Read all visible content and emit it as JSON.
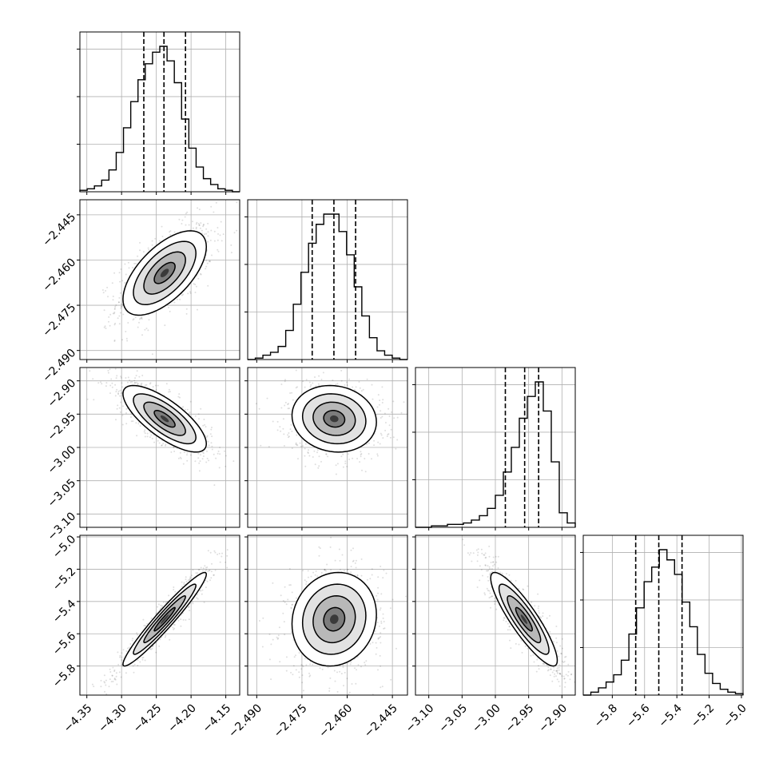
{
  "chart_data": {
    "type": "corner",
    "grid": true,
    "colors": {
      "line": "#000000",
      "grid": "#b0b0b0",
      "scatter": "#000000",
      "background": "#ffffff"
    },
    "parameters": [
      {
        "range": [
          -4.36,
          -4.13
        ],
        "ticks": [
          -4.35,
          -4.3,
          -4.25,
          -4.2,
          -4.15
        ],
        "tick_labels": [
          "−4.35",
          "−4.30",
          "−4.25",
          "−4.20",
          "−4.15"
        ],
        "quantiles": [
          -4.268,
          -4.239,
          -4.208
        ],
        "mean": -4.238,
        "sd": 0.03,
        "histogram": [
          0.01,
          0.02,
          0.04,
          0.08,
          0.15,
          0.27,
          0.44,
          0.62,
          0.77,
          0.88,
          0.96,
          1.0,
          0.9,
          0.75,
          0.5,
          0.3,
          0.17,
          0.09,
          0.05,
          0.02,
          0.01,
          0.0
        ]
      },
      {
        "range": [
          -2.493,
          -2.44
        ],
        "ticks": [
          -2.49,
          -2.475,
          -2.46,
          -2.445
        ],
        "tick_labels": [
          "−2.490",
          "−2.475",
          "−2.460",
          "−2.445"
        ],
        "quantiles": [
          -2.4716,
          -2.4644,
          -2.4572
        ],
        "mean": -2.4643,
        "sd": 0.007,
        "histogram": [
          0.0,
          0.01,
          0.03,
          0.05,
          0.09,
          0.2,
          0.38,
          0.6,
          0.8,
          0.93,
          1.0,
          1.0,
          0.88,
          0.72,
          0.5,
          0.3,
          0.15,
          0.06,
          0.03,
          0.01,
          0.0
        ]
      },
      {
        "range": [
          -3.12,
          -2.88
        ],
        "ticks": [
          -3.1,
          -3.05,
          -3.0,
          -2.95,
          -2.9
        ],
        "tick_labels": [
          "−3.10",
          "−3.05",
          "−3.00",
          "−2.95",
          "−2.90"
        ],
        "quantiles": [
          -2.985,
          -2.956,
          -2.935
        ],
        "mean": -2.957,
        "sd": 0.025,
        "histogram": [
          0.0,
          0.0,
          0.01,
          0.01,
          0.02,
          0.02,
          0.03,
          0.05,
          0.08,
          0.13,
          0.22,
          0.38,
          0.55,
          0.75,
          0.9,
          1.0,
          0.8,
          0.45,
          0.1,
          0.03
        ]
      },
      {
        "range": [
          -5.98,
          -4.99
        ],
        "ticks": [
          -5.8,
          -5.6,
          -5.4,
          -5.2,
          -5.0
        ],
        "tick_labels": [
          "−5.8",
          "−5.6",
          "−5.4",
          "−5.2",
          "−5.0"
        ],
        "quantiles": [
          -5.655,
          -5.512,
          -5.368
        ],
        "mean": -5.51,
        "sd": 0.145,
        "histogram": [
          0.0,
          0.02,
          0.05,
          0.09,
          0.14,
          0.24,
          0.42,
          0.6,
          0.78,
          0.88,
          1.0,
          0.93,
          0.83,
          0.64,
          0.47,
          0.28,
          0.15,
          0.08,
          0.04,
          0.02,
          0.01
        ]
      }
    ],
    "correlations": [
      {
        "i": 1,
        "j": 0,
        "rho": 0.62
      },
      {
        "i": 2,
        "j": 0,
        "rho": -0.75
      },
      {
        "i": 2,
        "j": 1,
        "rho": -0.1
      },
      {
        "i": 3,
        "j": 0,
        "rho": 0.96
      },
      {
        "i": 3,
        "j": 1,
        "rho": 0.1
      },
      {
        "i": 3,
        "j": 2,
        "rho": -0.88
      }
    ],
    "contour_levels_sigma": [
      0.5,
      1.0,
      1.5,
      2.0
    ]
  }
}
